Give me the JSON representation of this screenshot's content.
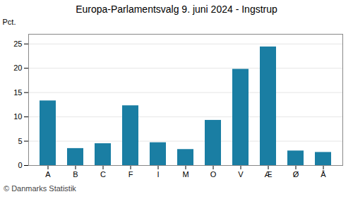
{
  "chart_data": {
    "type": "bar",
    "title": "Europa-Parlamentsvalg 9. juni 2024 - Ingstrup",
    "y_label": "Pct.",
    "caption": "© Danmarks Statistik",
    "categories": [
      "A",
      "B",
      "C",
      "F",
      "I",
      "M",
      "O",
      "V",
      "Æ",
      "Ø",
      "Å"
    ],
    "values": [
      13.3,
      3.5,
      4.5,
      12.3,
      4.7,
      3.3,
      9.3,
      19.8,
      24.4,
      3.0,
      2.7
    ],
    "color": "#1a7ea3",
    "ylim": [
      0,
      27
    ],
    "yticks": [
      0,
      5,
      10,
      15,
      20,
      25
    ],
    "grid": true
  }
}
